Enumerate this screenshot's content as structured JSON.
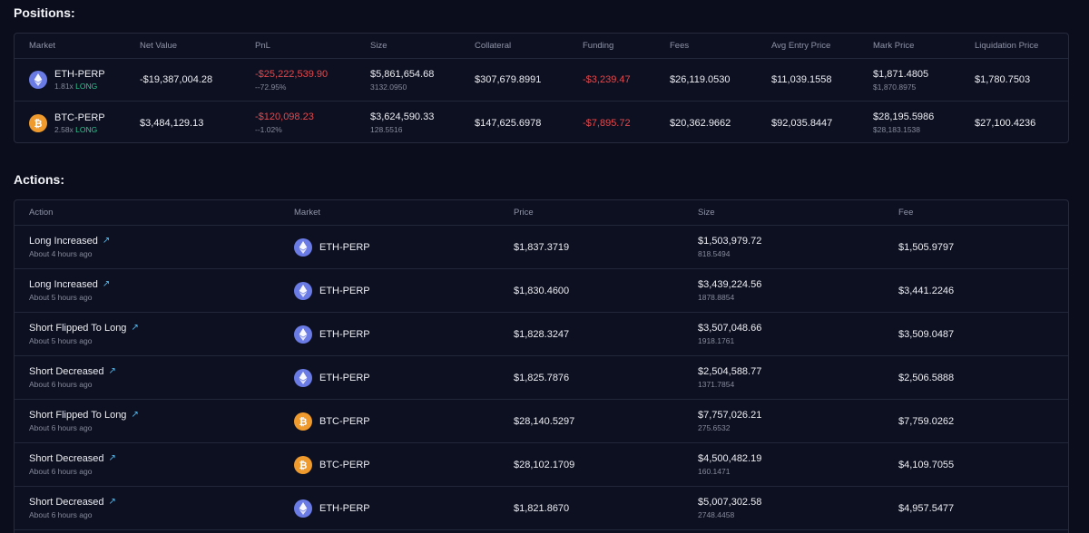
{
  "positions": {
    "title": "Positions:",
    "headers": [
      "Market",
      "Net Value",
      "PnL",
      "Size",
      "Collateral",
      "Funding",
      "Fees",
      "Avg Entry Price",
      "Mark Price",
      "Liquidation Price"
    ],
    "rows": [
      {
        "coin_icon": "eth-icon",
        "market": "ETH-PERP",
        "leverage": "1.81x",
        "side": "LONG",
        "net_value": "-$19,387,004.28",
        "pnl": "-$25,222,539.90",
        "pnl_pct": "--72.95%",
        "size": "$5,861,654.68",
        "size_units": "3132.0950",
        "collateral": "$307,679.8991",
        "funding": "-$3,239.47",
        "fees": "$26,119.0530",
        "avg_entry": "$11,039.1558",
        "mark_price": "$1,871.4805",
        "mark_price_sub": "$1,870.8975",
        "liq_price": "$1,780.7503"
      },
      {
        "coin_icon": "btc-icon",
        "market": "BTC-PERP",
        "leverage": "2.58x",
        "side": "LONG",
        "net_value": "$3,484,129.13",
        "pnl": "-$120,098.23",
        "pnl_pct": "--1.02%",
        "size": "$3,624,590.33",
        "size_units": "128.5516",
        "collateral": "$147,625.6978",
        "funding": "-$7,895.72",
        "fees": "$20,362.9662",
        "avg_entry": "$92,035.8447",
        "mark_price": "$28,195.5986",
        "mark_price_sub": "$28,183.1538",
        "liq_price": "$27,100.4236"
      }
    ]
  },
  "actions": {
    "title": "Actions:",
    "headers": [
      "Action",
      "Market",
      "Price",
      "Size",
      "Fee"
    ],
    "rows": [
      {
        "action": "Long Increased",
        "time": "About 4 hours ago",
        "coin_icon": "eth-icon",
        "market": "ETH-PERP",
        "price": "$1,837.3719",
        "size": "$1,503,979.72",
        "size_units": "818.5494",
        "fee": "$1,505.9797"
      },
      {
        "action": "Long Increased",
        "time": "About 5 hours ago",
        "coin_icon": "eth-icon",
        "market": "ETH-PERP",
        "price": "$1,830.4600",
        "size": "$3,439,224.56",
        "size_units": "1878.8854",
        "fee": "$3,441.2246"
      },
      {
        "action": "Short Flipped To Long",
        "time": "About 5 hours ago",
        "coin_icon": "eth-icon",
        "market": "ETH-PERP",
        "price": "$1,828.3247",
        "size": "$3,507,048.66",
        "size_units": "1918.1761",
        "fee": "$3,509.0487"
      },
      {
        "action": "Short Decreased",
        "time": "About 6 hours ago",
        "coin_icon": "eth-icon",
        "market": "ETH-PERP",
        "price": "$1,825.7876",
        "size": "$2,504,588.77",
        "size_units": "1371.7854",
        "fee": "$2,506.5888"
      },
      {
        "action": "Short Flipped To Long",
        "time": "About 6 hours ago",
        "coin_icon": "btc-icon",
        "market": "BTC-PERP",
        "price": "$28,140.5297",
        "size": "$7,757,026.21",
        "size_units": "275.6532",
        "fee": "$7,759.0262"
      },
      {
        "action": "Short Decreased",
        "time": "About 6 hours ago",
        "coin_icon": "btc-icon",
        "market": "BTC-PERP",
        "price": "$28,102.1709",
        "size": "$4,500,482.19",
        "size_units": "160.1471",
        "fee": "$4,109.7055"
      },
      {
        "action": "Short Decreased",
        "time": "About 6 hours ago",
        "coin_icon": "eth-icon",
        "market": "ETH-PERP",
        "price": "$1,821.8670",
        "size": "$5,007,302.58",
        "size_units": "2748.4458",
        "fee": "$4,957.5477"
      }
    ]
  },
  "colors": {
    "background": "#0b0d1c",
    "negative": "#e5484d",
    "long": "#2fc88f",
    "eth": "#6a7be5",
    "btc": "#ef9a2d",
    "link": "#52bdf2"
  },
  "icons": {
    "external_link": "↗"
  }
}
